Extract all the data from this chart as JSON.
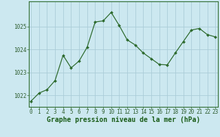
{
  "x": [
    0,
    1,
    2,
    3,
    4,
    5,
    6,
    7,
    8,
    9,
    10,
    11,
    12,
    13,
    14,
    15,
    16,
    17,
    18,
    19,
    20,
    21,
    22,
    23
  ],
  "y": [
    1021.75,
    1022.1,
    1022.25,
    1022.65,
    1023.75,
    1023.2,
    1023.5,
    1024.1,
    1025.2,
    1025.25,
    1025.62,
    1025.05,
    1024.42,
    1024.2,
    1023.85,
    1023.6,
    1023.35,
    1023.33,
    1023.85,
    1024.35,
    1024.85,
    1024.92,
    1024.65,
    1024.55
  ],
  "line_color": "#2d6a2d",
  "marker_color": "#2d6a2d",
  "bg_color": "#cce8f0",
  "grid_color": "#aaccd8",
  "xlabel": "Graphe pression niveau de la mer (hPa)",
  "xlabel_color": "#1a5c18",
  "tick_label_color": "#2d5c2d",
  "ylim": [
    1021.5,
    1026.1
  ],
  "yticks": [
    1022,
    1023,
    1024,
    1025
  ],
  "xticks": [
    0,
    1,
    2,
    3,
    4,
    5,
    6,
    7,
    8,
    9,
    10,
    11,
    12,
    13,
    14,
    15,
    16,
    17,
    18,
    19,
    20,
    21,
    22,
    23
  ],
  "border_color": "#2d6a2d",
  "xlabel_fontsize": 7,
  "tick_fontsize": 5.5
}
